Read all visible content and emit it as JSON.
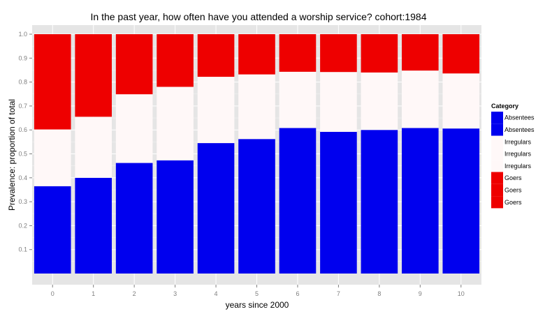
{
  "chart_data": {
    "type": "bar",
    "stacked": true,
    "title": "In the past year, how often have you attended a worship service?   cohort:1984",
    "xlabel": "years since 2000",
    "ylabel": "Prevalence: proportion of total",
    "categories": [
      "0",
      "1",
      "2",
      "3",
      "4",
      "5",
      "6",
      "7",
      "8",
      "9",
      "10"
    ],
    "y_ticks": [
      "0.1",
      "0.2",
      "0.3",
      "0.4",
      "0.5",
      "0.6",
      "0.7",
      "0.8",
      "0.9",
      "1.0"
    ],
    "ylim": [
      -0.05,
      1.0
    ],
    "grid": true,
    "legend_position": "right",
    "series": [
      {
        "name": "Absentees",
        "color": "#0000ee",
        "values": [
          0.365,
          0.4,
          0.462,
          0.473,
          0.545,
          0.562,
          0.608,
          0.592,
          0.6,
          0.608,
          0.606
        ]
      },
      {
        "name": "Irregulars",
        "color": "#fff8f8",
        "values": [
          0.237,
          0.255,
          0.287,
          0.307,
          0.277,
          0.27,
          0.235,
          0.25,
          0.24,
          0.24,
          0.23
        ]
      },
      {
        "name": "Goers",
        "color": "#ee0000",
        "values": [
          0.398,
          0.345,
          0.251,
          0.22,
          0.178,
          0.168,
          0.157,
          0.158,
          0.16,
          0.152,
          0.164
        ]
      }
    ],
    "legend": {
      "title": "Category",
      "entries": [
        {
          "label": "Absentees",
          "color": "#0000ee"
        },
        {
          "label": "Absentees",
          "color": "#0000ee"
        },
        {
          "label": "Irregulars",
          "color": "#fff8f8"
        },
        {
          "label": "Irregulars",
          "color": "#fff8f8"
        },
        {
          "label": "Irregulars",
          "color": "#fff8f8"
        },
        {
          "label": "Goers",
          "color": "#ee0000"
        },
        {
          "label": "Goers",
          "color": "#ee0000"
        },
        {
          "label": "Goers",
          "color": "#ee0000"
        }
      ]
    }
  }
}
